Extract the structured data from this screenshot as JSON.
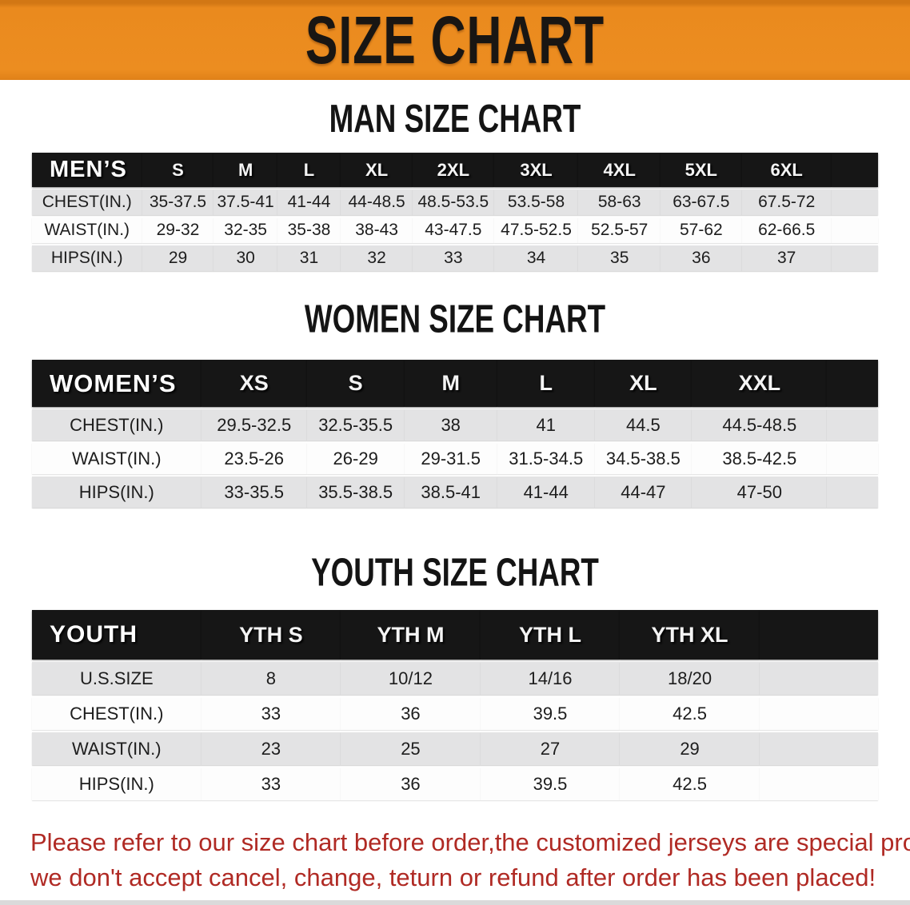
{
  "banner": {
    "title": "SIZE CHART"
  },
  "colors": {
    "banner_orange": "#EA8A1E",
    "header_black": "#161616",
    "row_gray": "#E3E3E4",
    "warning_red": "#B02A24"
  },
  "sections": [
    {
      "heading": "MAN SIZE CHART",
      "table": {
        "header_label": "MEN’S",
        "columns": [
          "S",
          "M",
          "L",
          "XL",
          "2XL",
          "3XL",
          "4XL",
          "5XL",
          "6XL"
        ],
        "col_widths": [
          "13%",
          "8.5%",
          "7.5%",
          "7.5%",
          "8.5%",
          "9.6%",
          "10%",
          "9.7%",
          "9.6%",
          "10.6%",
          "5.5%"
        ],
        "rows": [
          {
            "label": "CHEST(IN.)",
            "values": [
              "35-37.5",
              "37.5-41",
              "41-44",
              "44-48.5",
              "48.5-53.5",
              "53.5-58",
              "58-63",
              "63-67.5",
              "67.5-72"
            ]
          },
          {
            "label": "WAIST(IN.)",
            "values": [
              "29-32",
              "32-35",
              "35-38",
              "38-43",
              "43-47.5",
              "47.5-52.5",
              "52.5-57",
              "57-62",
              "62-66.5"
            ]
          },
          {
            "label": "HIPS(IN.)",
            "values": [
              "29",
              "30",
              "31",
              "32",
              "33",
              "34",
              "35",
              "36",
              "37"
            ]
          }
        ]
      }
    },
    {
      "heading": "WOMEN SIZE CHART",
      "table": {
        "header_label": "WOMEN’S",
        "columns": [
          "XS",
          "S",
          "M",
          "L",
          "XL",
          "XXL"
        ],
        "col_widths": [
          "20%",
          "12.5%",
          "11.5%",
          "11%",
          "11.5%",
          "11.5%",
          "16%",
          "6%"
        ],
        "rows": [
          {
            "label": "CHEST(IN.)",
            "values": [
              "29.5-32.5",
              "32.5-35.5",
              "38",
              "41",
              "44.5",
              "44.5-48.5"
            ]
          },
          {
            "label": "WAIST(IN.)",
            "values": [
              "23.5-26",
              "26-29",
              "29-31.5",
              "31.5-34.5",
              "34.5-38.5",
              "38.5-42.5"
            ]
          },
          {
            "label": "HIPS(IN.)",
            "values": [
              "33-35.5",
              "35.5-38.5",
              "38.5-41",
              "41-44",
              "44-47",
              "47-50"
            ]
          }
        ]
      }
    },
    {
      "heading": "YOUTH SIZE CHART",
      "table": {
        "header_label": "YOUTH",
        "columns": [
          "YTH S",
          "YTH M",
          "YTH L",
          "YTH XL"
        ],
        "col_widths": [
          "20%",
          "16.5%",
          "16.5%",
          "16.5%",
          "16.5%",
          "14%"
        ],
        "rows": [
          {
            "label": "U.S.SIZE",
            "values": [
              "8",
              "10/12",
              "14/16",
              "18/20"
            ]
          },
          {
            "label": "CHEST(IN.)",
            "values": [
              "33",
              "36",
              "39.5",
              "42.5"
            ]
          },
          {
            "label": "WAIST(IN.)",
            "values": [
              "23",
              "25",
              "27",
              "29"
            ]
          },
          {
            "label": "HIPS(IN.)",
            "values": [
              "33",
              "36",
              "39.5",
              "42.5"
            ]
          }
        ]
      }
    }
  ],
  "footer": {
    "line1": "Please refer to our size chart before order,the customized jerseys are special products,",
    "line2": "we don't accept cancel, change, teturn or refund after order has been placed!"
  }
}
